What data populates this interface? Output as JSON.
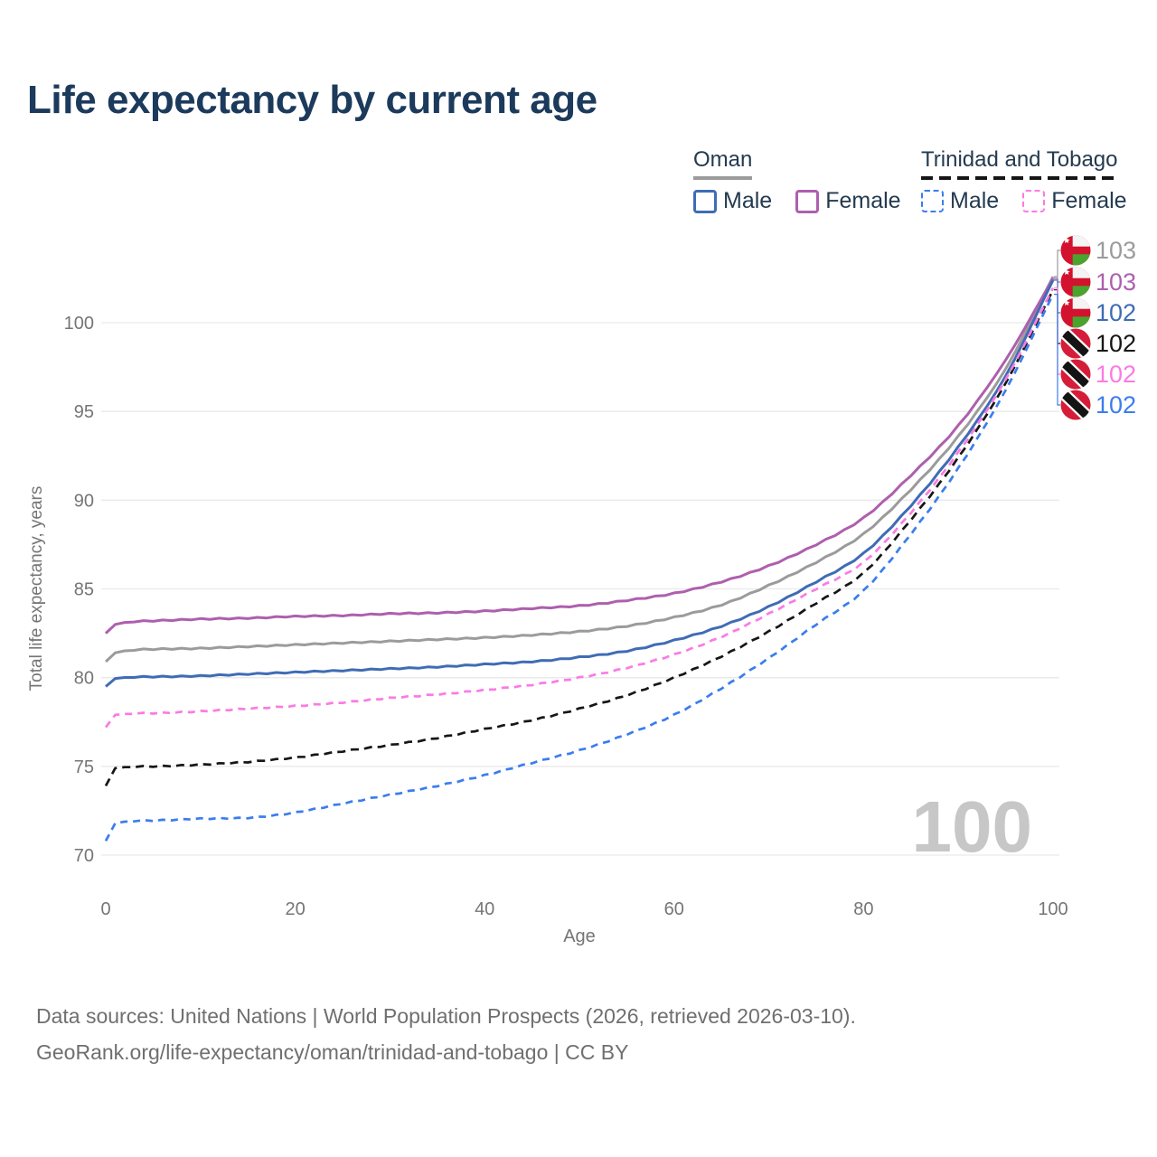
{
  "title": "Life expectancy by current age",
  "legend": {
    "oman": {
      "name": "Oman",
      "male": "Male",
      "female": "Female"
    },
    "trinidad_and_tobago": {
      "name": "Trinidad and Tobago",
      "male": "Male",
      "female": "Female"
    }
  },
  "footer": {
    "line1": "Data sources: United Nations | World Population Prospects (2026, retrieved 2026-03-10).",
    "line2": "GeoRank.org/life-expectancy/oman/trinidad-and-tobago | CC BY"
  },
  "colors": {
    "title": "#1c3a5c",
    "legend_text": "#243a4f",
    "axis_text": "#757575",
    "grid": "#e9e9e9",
    "watermark": "#c7c7c7",
    "footer_text": "#6f6f6f",
    "oman_underline": "#9b9b9b",
    "tt_underline": "#161616",
    "oman_flag_red": "#d2122e",
    "oman_flag_green": "#4aa32e",
    "tt_flag_red": "#d51d39"
  },
  "chart_data": {
    "type": "line",
    "title": "Life expectancy by current age",
    "xlabel": "Age",
    "ylabel": "Total life expectancy, years",
    "xlim": [
      0,
      100
    ],
    "ylim": [
      70,
      103
    ],
    "xticks": [
      0,
      20,
      40,
      60,
      80,
      100
    ],
    "yticks": [
      70,
      75,
      80,
      85,
      90,
      95,
      100
    ],
    "grid": "horizontal",
    "legend_position": "top-right",
    "watermark": "100",
    "x": [
      0,
      1,
      5,
      10,
      15,
      20,
      25,
      30,
      35,
      40,
      45,
      50,
      55,
      60,
      65,
      70,
      75,
      80,
      85,
      90,
      95,
      100
    ],
    "series": [
      {
        "id": "oman-both",
        "name": "Oman — Both sexes",
        "country": "Oman",
        "sex": "both",
        "flag": "oman",
        "color": "#9b9b9b",
        "dash": "solid",
        "end_label": "103",
        "values": [
          80.9,
          81.4,
          81.6,
          81.65,
          81.75,
          81.85,
          81.95,
          82.05,
          82.15,
          82.25,
          82.4,
          82.6,
          82.9,
          83.4,
          84.1,
          85.2,
          86.5,
          88.1,
          90.6,
          93.6,
          97.4,
          102.6
        ]
      },
      {
        "id": "oman-female",
        "name": "Oman — Female",
        "country": "Oman",
        "sex": "female",
        "flag": "oman",
        "color": "#ae5fae",
        "dash": "solid",
        "end_label": "103",
        "values": [
          82.5,
          83.0,
          83.2,
          83.3,
          83.35,
          83.45,
          83.5,
          83.6,
          83.65,
          83.75,
          83.9,
          84.05,
          84.35,
          84.75,
          85.4,
          86.3,
          87.5,
          89.0,
          91.4,
          94.2,
          97.9,
          102.5
        ]
      },
      {
        "id": "oman-male",
        "name": "Oman — Male",
        "country": "Oman",
        "sex": "male",
        "flag": "oman",
        "color": "#3f6cb5",
        "dash": "solid",
        "end_label": "102",
        "values": [
          79.5,
          79.95,
          80.05,
          80.1,
          80.2,
          80.3,
          80.4,
          80.5,
          80.6,
          80.75,
          80.9,
          81.15,
          81.5,
          82.1,
          82.9,
          84.0,
          85.4,
          87.0,
          89.7,
          93.0,
          97.0,
          102.4
        ]
      },
      {
        "id": "tt-both",
        "name": "Trinidad and Tobago — Both sexes",
        "country": "Trinidad and Tobago",
        "sex": "both",
        "flag": "trinidad-and-tobago",
        "color": "#161616",
        "dash": "dashed",
        "end_label": "102",
        "values": [
          73.9,
          74.9,
          75.0,
          75.1,
          75.25,
          75.5,
          75.85,
          76.2,
          76.6,
          77.1,
          77.6,
          78.25,
          79.0,
          80.0,
          81.2,
          82.6,
          84.2,
          85.9,
          88.9,
          92.4,
          96.6,
          101.85
        ]
      },
      {
        "id": "tt-female",
        "name": "Trinidad and Tobago — Female",
        "country": "Trinidad and Tobago",
        "sex": "female",
        "flag": "trinidad-and-tobago",
        "color": "#fb7ae3",
        "dash": "dashed",
        "end_label": "102",
        "values": [
          77.2,
          77.9,
          78.0,
          78.1,
          78.25,
          78.4,
          78.6,
          78.85,
          79.05,
          79.3,
          79.6,
          80.0,
          80.55,
          81.3,
          82.3,
          83.6,
          85.0,
          86.5,
          89.3,
          92.7,
          96.8,
          101.95
        ]
      },
      {
        "id": "tt-male",
        "name": "Trinidad and Tobago — Male",
        "country": "Trinidad and Tobago",
        "sex": "male",
        "flag": "trinidad-and-tobago",
        "color": "#3b7ded",
        "dash": "dashed",
        "end_label": "102",
        "values": [
          70.8,
          71.8,
          71.95,
          72.05,
          72.1,
          72.4,
          72.9,
          73.4,
          73.9,
          74.5,
          75.2,
          75.9,
          76.8,
          77.9,
          79.4,
          81.1,
          83.0,
          84.9,
          88.1,
          91.8,
          96.2,
          101.6
        ]
      }
    ]
  }
}
